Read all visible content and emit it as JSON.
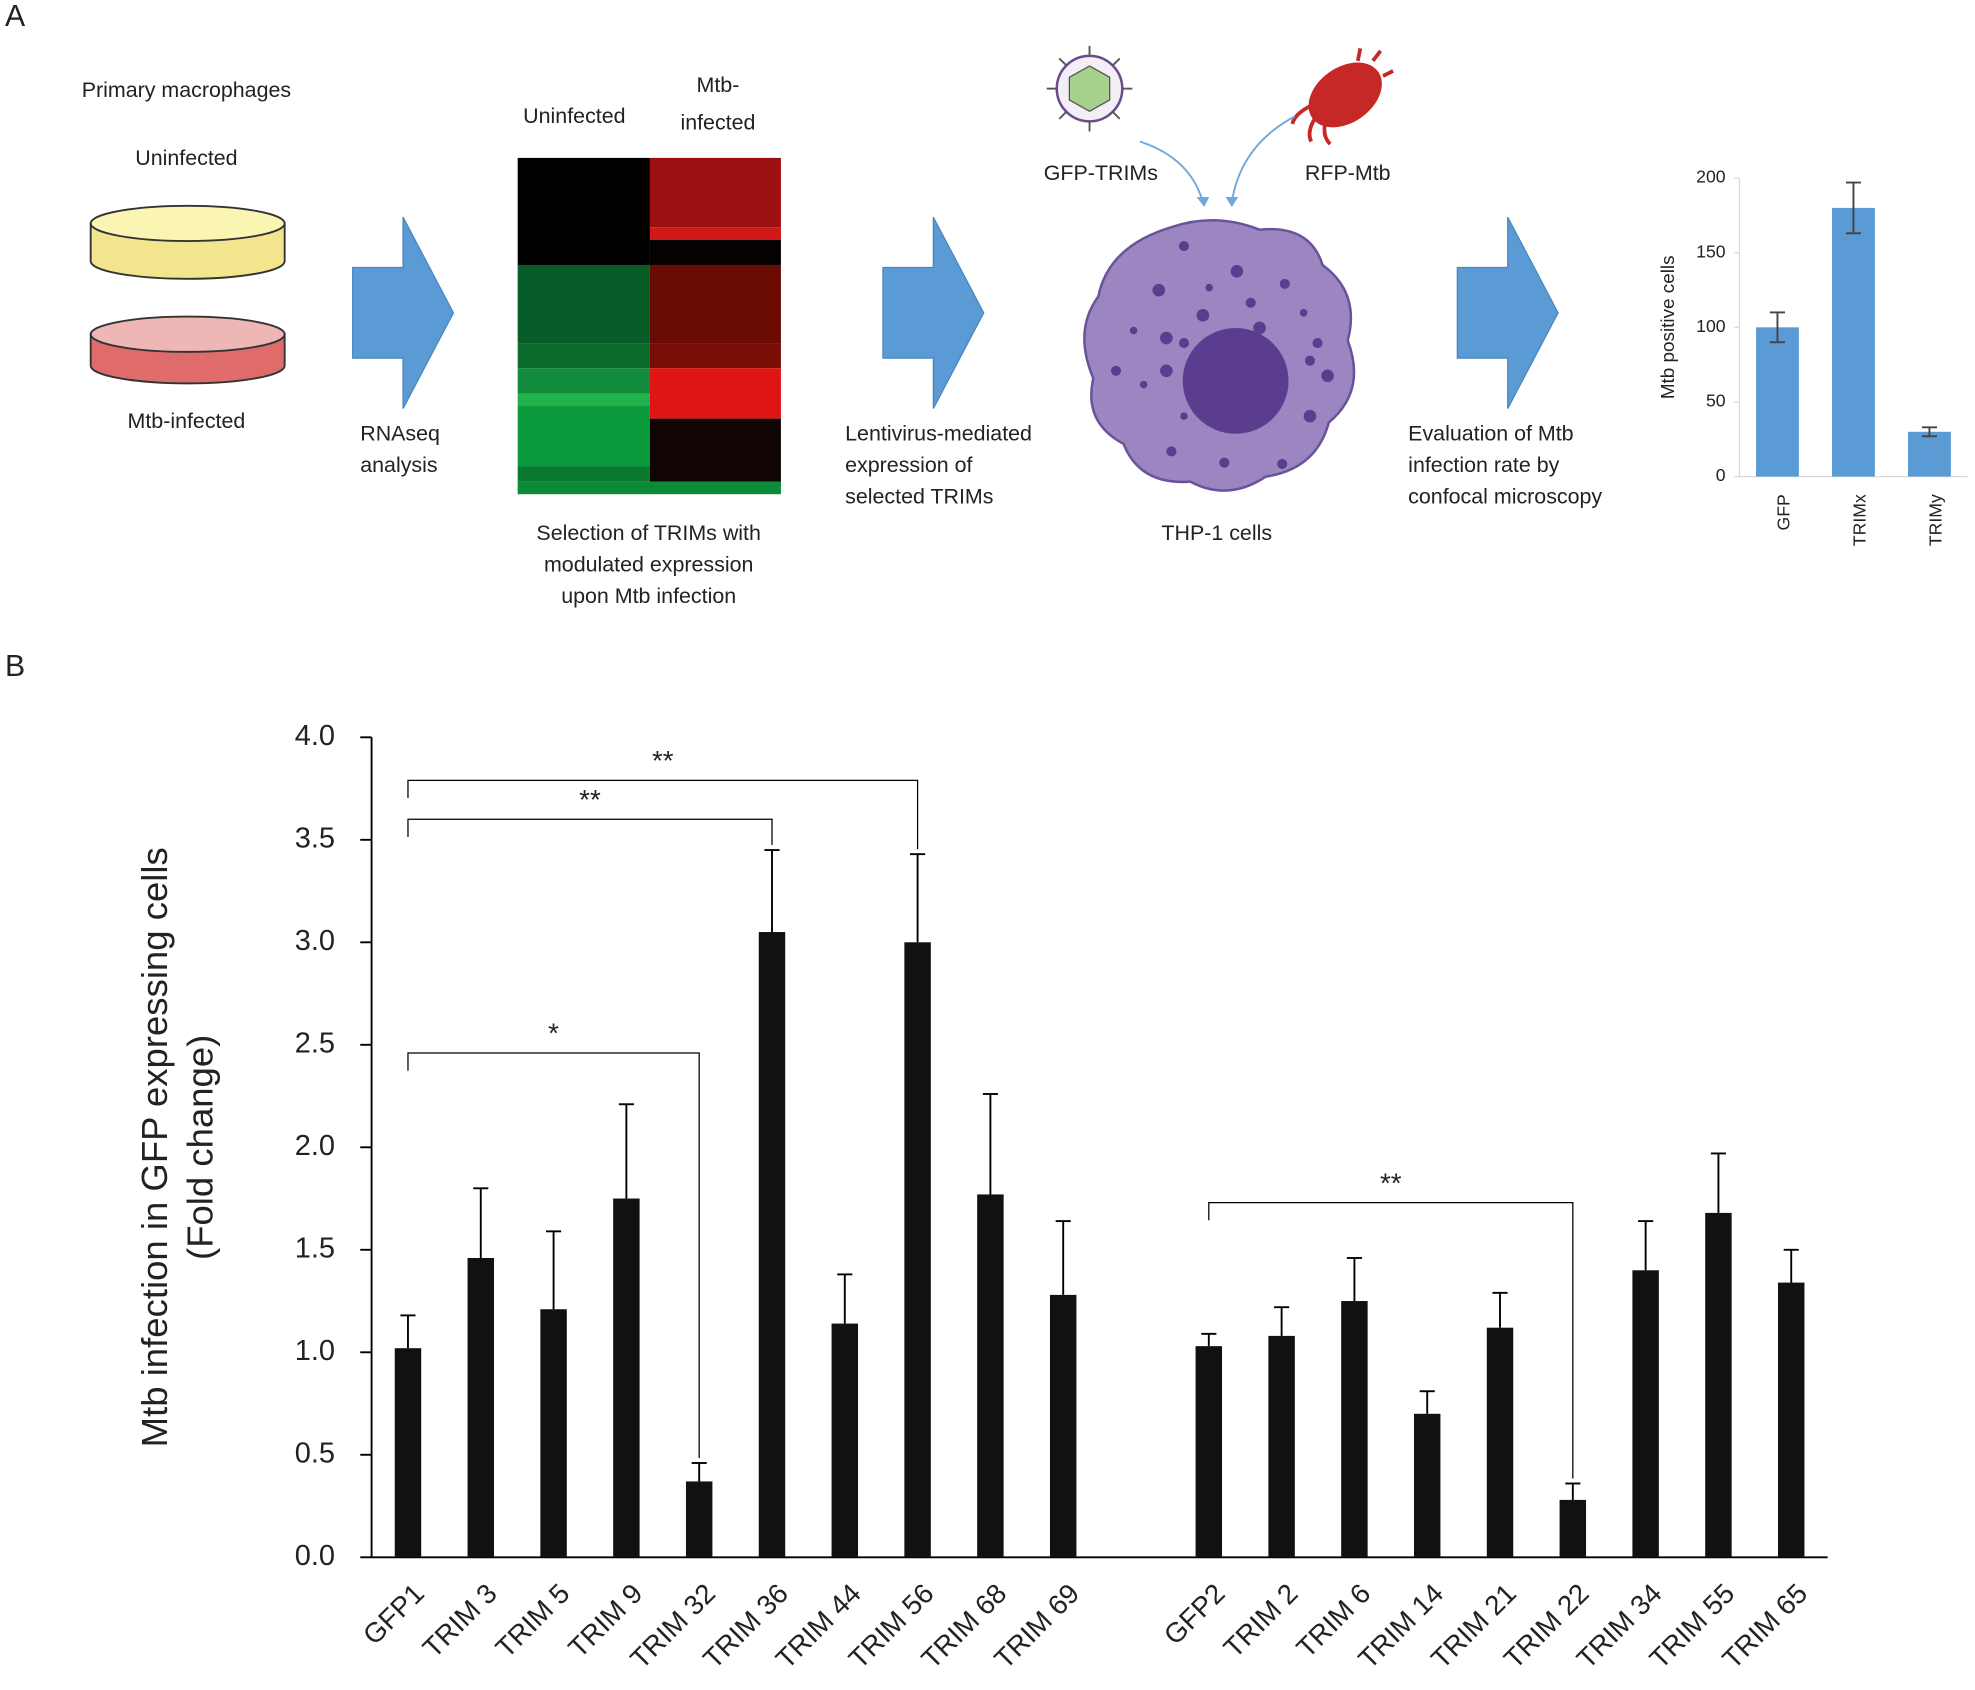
{
  "panel_labels": [
    "A",
    "B"
  ],
  "diagram": {
    "step1": {
      "title": "Primary macrophages",
      "uninfected": "Uninfected",
      "infected": "Mtb-infected"
    },
    "arrow1_label": [
      "RNAseq",
      "analysis"
    ],
    "heatmap": {
      "col1": "Uninfected",
      "col2": [
        "Mtb-",
        "infected"
      ],
      "caption": [
        "Selection of TRIMs with",
        "modulated expression",
        "upon Mtb infection"
      ]
    },
    "virus_label": "GFP-TRIMs",
    "bacteria_label": "RFP-Mtb",
    "arrow2_label": [
      "Lentivirus-mediated",
      "expression of",
      "selected TRIMs"
    ],
    "cell_label": "THP-1 cells",
    "arrow3_label": [
      "Evaluation of Mtb",
      "infection rate by",
      "confocal microscopy"
    ]
  },
  "chart_data": [
    {
      "type": "bar",
      "ylabel": "Mtb positive cells",
      "categories": [
        "GFP",
        "TRIMx",
        "TRIMy"
      ],
      "values": [
        100,
        180,
        30
      ],
      "errors": [
        10,
        17,
        3
      ],
      "color": "#5b9bd5",
      "ylim": [
        0,
        200
      ],
      "yticks": [
        0,
        50,
        100,
        150,
        200
      ]
    },
    {
      "type": "bar",
      "ylabel": [
        "Mtb infection in GFP expressing cells",
        "(Fold change)"
      ],
      "categories": [
        "GFP1",
        "TRIM 3",
        "TRIM 5",
        "TRIM 9",
        "TRIM 32",
        "TRIM 36",
        "TRIM 44",
        "TRIM 56",
        "TRIM 68",
        "TRIM 69",
        null,
        "GFP2",
        "TRIM 2",
        "TRIM 6",
        "TRIM 14",
        "TRIM 21",
        "TRIM 22",
        "TRIM 34",
        "TRIM 55",
        "TRIM 65"
      ],
      "values": [
        1.02,
        1.46,
        1.21,
        1.75,
        0.37,
        3.05,
        1.14,
        3.0,
        1.77,
        1.28,
        null,
        1.03,
        1.08,
        1.25,
        0.7,
        1.12,
        0.28,
        1.4,
        1.68,
        1.34
      ],
      "errors": [
        0.16,
        0.34,
        0.38,
        0.46,
        0.09,
        0.4,
        0.24,
        0.43,
        0.49,
        0.36,
        null,
        0.06,
        0.14,
        0.21,
        0.11,
        0.17,
        0.08,
        0.24,
        0.29,
        0.16
      ],
      "color": "#111111",
      "ylim": [
        0,
        4
      ],
      "yticks": [
        {
          "value": 0,
          "label": "0.0"
        },
        0.5,
        {
          "value": 1,
          "label": "1.0"
        },
        1.5,
        {
          "value": 2,
          "label": "2.0"
        },
        2.5,
        {
          "value": 3,
          "label": "3.0"
        },
        3.5,
        {
          "value": 4,
          "label": "4.0"
        }
      ],
      "annotations": [
        {
          "from": 0,
          "to": 7,
          "y": 3.79,
          "label": "**"
        },
        {
          "from": 0,
          "to": 5,
          "y": 3.6,
          "label": "**"
        },
        {
          "from": 0,
          "to": 4,
          "y": 2.46,
          "label": "*"
        },
        {
          "from": 11,
          "to": 16,
          "y": 1.73,
          "label": "**"
        }
      ]
    }
  ]
}
